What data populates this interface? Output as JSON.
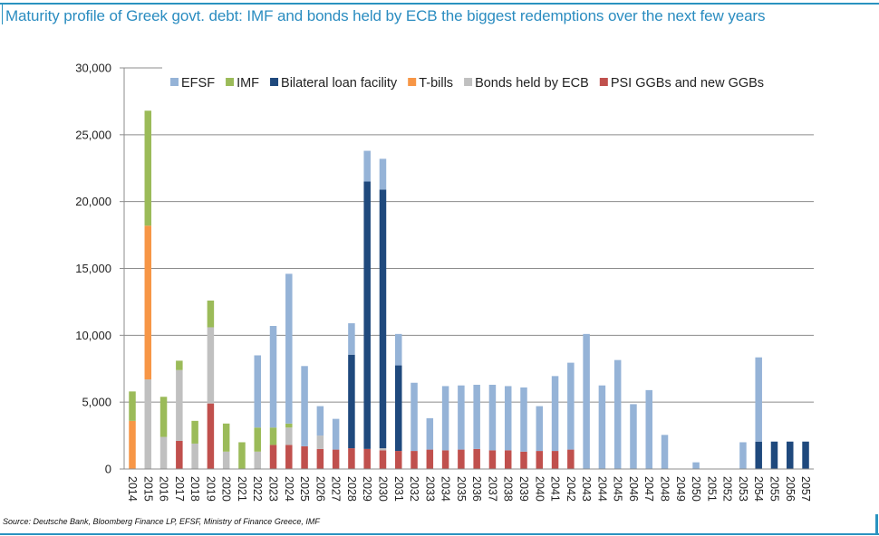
{
  "title": "Maturity profile of Greek govt. debt: IMF and bonds held by ECB the biggest redemptions over the next few years",
  "source": "Source: Deutsche Bank, Bloomberg Finance LP, EFSF, Ministry of Finance Greece, IMF",
  "colors": {
    "accent": "#2a93c0",
    "gridline": "#8c8c8c"
  },
  "chart_data": {
    "type": "bar",
    "stacked": true,
    "title": "Maturity profile of Greek govt. debt: IMF and bonds held by ECB the biggest redemptions over the next few years",
    "xlabel": "",
    "ylabel": "",
    "ylim": [
      0,
      30000
    ],
    "yticks": [
      0,
      5000,
      10000,
      15000,
      20000,
      25000,
      30000
    ],
    "ytick_labels": [
      "0",
      "5,000",
      "10,000",
      "15,000",
      "20,000",
      "25,000",
      "30,000"
    ],
    "grid": true,
    "legend_position": "top-right",
    "categories": [
      "2014",
      "2015",
      "2016",
      "2017",
      "2018",
      "2019",
      "2020",
      "2021",
      "2022",
      "2023",
      "2024",
      "2025",
      "2026",
      "2027",
      "2028",
      "2029",
      "2030",
      "2031",
      "2032",
      "2033",
      "2034",
      "2035",
      "2036",
      "2037",
      "2038",
      "2039",
      "2040",
      "2041",
      "2042",
      "2043",
      "2044",
      "2045",
      "2046",
      "2047",
      "2048",
      "2049",
      "2050",
      "2051",
      "2052",
      "2053",
      "2054",
      "2055",
      "2056",
      "2057"
    ],
    "series": [
      {
        "name": "PSI GGBs and new GGBs",
        "color": "#c0504d",
        "values": [
          0,
          0,
          0,
          2100,
          0,
          4900,
          0,
          0,
          0,
          1800,
          1800,
          1700,
          1500,
          1450,
          1550,
          1500,
          1400,
          1350,
          1350,
          1450,
          1400,
          1450,
          1500,
          1400,
          1400,
          1300,
          1350,
          1350,
          1450,
          0,
          0,
          0,
          0,
          0,
          0,
          0,
          0,
          0,
          0,
          0,
          0,
          0,
          0,
          0
        ]
      },
      {
        "name": "Bonds held by ECB",
        "color": "#c0c0c0",
        "values": [
          0,
          6700,
          2400,
          5300,
          1900,
          5700,
          1300,
          0,
          1300,
          0,
          1300,
          0,
          1000,
          0,
          0,
          0,
          150,
          0,
          0,
          0,
          0,
          0,
          0,
          0,
          0,
          0,
          0,
          0,
          0,
          0,
          0,
          0,
          0,
          0,
          0,
          0,
          0,
          0,
          0,
          0,
          0,
          0,
          0,
          0
        ]
      },
      {
        "name": "T-bills",
        "color": "#f79646",
        "values": [
          3600,
          11500,
          0,
          0,
          0,
          0,
          0,
          0,
          0,
          0,
          0,
          0,
          0,
          0,
          0,
          0,
          0,
          0,
          0,
          0,
          0,
          0,
          0,
          0,
          0,
          0,
          0,
          0,
          0,
          0,
          0,
          0,
          0,
          0,
          0,
          0,
          0,
          0,
          0,
          0,
          0,
          0,
          0,
          0
        ]
      },
      {
        "name": "IMF",
        "color": "#9bbb59",
        "values": [
          2200,
          8600,
          3000,
          700,
          1700,
          2000,
          2100,
          2000,
          1800,
          1300,
          300,
          0,
          0,
          0,
          0,
          0,
          0,
          0,
          0,
          0,
          0,
          0,
          0,
          0,
          0,
          0,
          0,
          0,
          0,
          0,
          0,
          0,
          0,
          0,
          0,
          0,
          0,
          0,
          0,
          0,
          0,
          0,
          0,
          0
        ]
      },
      {
        "name": "Bilateral loan facility",
        "color": "#1f497d",
        "values": [
          0,
          0,
          0,
          0,
          0,
          0,
          0,
          0,
          0,
          0,
          0,
          0,
          0,
          0,
          7000,
          20000,
          19350,
          6400,
          0,
          0,
          0,
          0,
          0,
          0,
          0,
          0,
          0,
          0,
          0,
          0,
          0,
          0,
          0,
          0,
          0,
          0,
          0,
          0,
          0,
          0,
          2050,
          2050,
          2050,
          2050
        ]
      },
      {
        "name": "EFSF",
        "color": "#95b3d7",
        "values": [
          0,
          0,
          0,
          0,
          0,
          0,
          0,
          0,
          5400,
          7600,
          11200,
          6000,
          2200,
          2300,
          2350,
          2300,
          2300,
          2350,
          5100,
          2350,
          4800,
          4800,
          4800,
          4900,
          4800,
          4800,
          3350,
          5600,
          6500,
          10100,
          6250,
          8150,
          4850,
          5900,
          2550,
          0,
          500,
          0,
          0,
          2000,
          6300,
          0,
          0,
          0
        ]
      }
    ],
    "legend": [
      {
        "name": "EFSF",
        "color": "#95b3d7"
      },
      {
        "name": "IMF",
        "color": "#9bbb59"
      },
      {
        "name": "Bilateral loan facility",
        "color": "#1f497d"
      },
      {
        "name": "T-bills",
        "color": "#f79646"
      },
      {
        "name": "Bonds held by ECB",
        "color": "#c0c0c0"
      },
      {
        "name": "PSI GGBs and new GGBs",
        "color": "#c0504d"
      }
    ]
  }
}
